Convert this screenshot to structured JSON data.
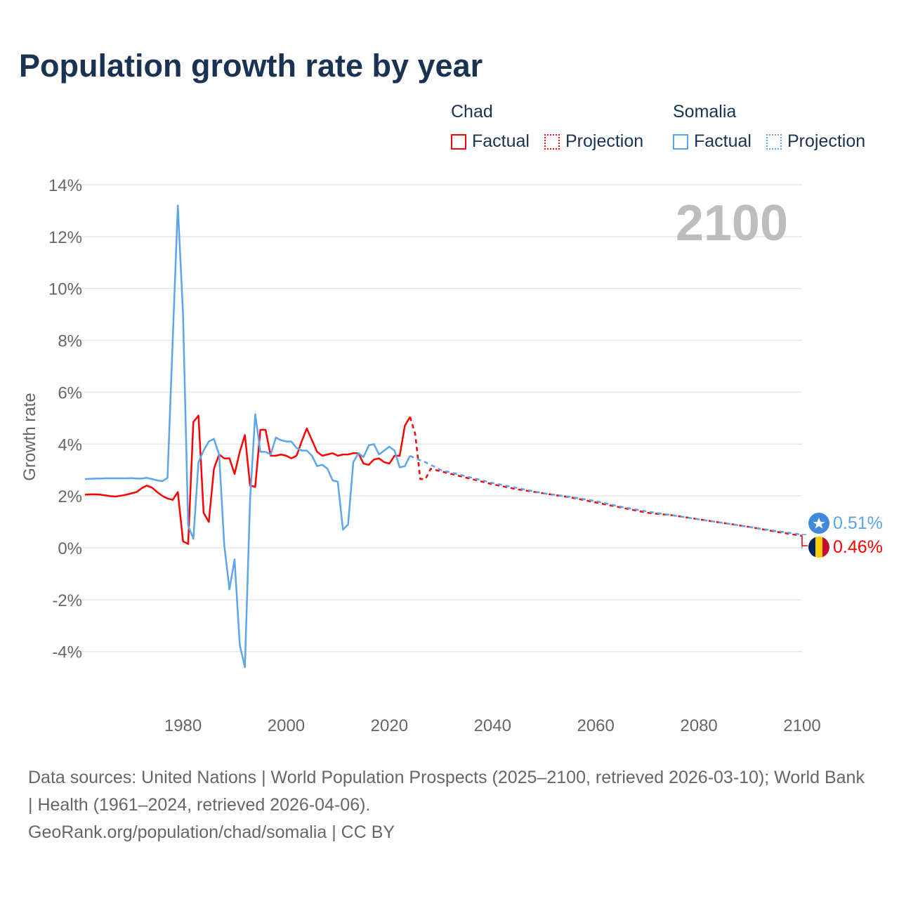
{
  "title": "Population growth rate by year",
  "legend": [
    {
      "name": "Chad",
      "factual": "Factual",
      "projection": "Projection",
      "color": "#ff0000"
    },
    {
      "name": "Somalia",
      "factual": "Factual",
      "projection": "Projection",
      "color": "#5aa5ec"
    }
  ],
  "chart_data": {
    "type": "line",
    "title": "Population growth rate by year",
    "ylabel": "Growth rate",
    "xlabel": "",
    "xlim": [
      1961,
      2100
    ],
    "ylim": [
      -4,
      14
    ],
    "yticks": [
      -4,
      -2,
      0,
      2,
      4,
      6,
      8,
      10,
      12,
      14
    ],
    "ytick_labels": [
      "-4%",
      "-2%",
      "0%",
      "2%",
      "4%",
      "6%",
      "8%",
      "10%",
      "12%",
      "14%"
    ],
    "xticks": [
      1980,
      2000,
      2020,
      2040,
      2060,
      2080,
      2100
    ],
    "xtick_labels": [
      "1980",
      "2000",
      "2020",
      "2040",
      "2060",
      "2080",
      "2100"
    ],
    "year_watermark": "2100",
    "grid": true,
    "series": [
      {
        "name": "Chad",
        "kind": "Factual",
        "color": "#ff0000",
        "dash": false,
        "x": [
          1961,
          1962,
          1963,
          1964,
          1965,
          1966,
          1967,
          1968,
          1969,
          1970,
          1971,
          1972,
          1973,
          1974,
          1975,
          1976,
          1977,
          1978,
          1979,
          1980,
          1981,
          1982,
          1983,
          1984,
          1985,
          1986,
          1987,
          1988,
          1989,
          1990,
          1991,
          1992,
          1993,
          1994,
          1995,
          1996,
          1997,
          1998,
          1999,
          2000,
          2001,
          2002,
          2003,
          2004,
          2005,
          2006,
          2007,
          2008,
          2009,
          2010,
          2011,
          2012,
          2013,
          2014,
          2015,
          2016,
          2017,
          2018,
          2019,
          2020,
          2021,
          2022,
          2023,
          2024
        ],
        "y": [
          2.05,
          2.06,
          2.06,
          2.05,
          2.02,
          1.99,
          1.98,
          2.01,
          2.05,
          2.1,
          2.15,
          2.3,
          2.4,
          2.32,
          2.15,
          2.0,
          1.9,
          1.85,
          2.15,
          0.25,
          0.15,
          4.85,
          5.1,
          1.35,
          1.0,
          3.05,
          3.6,
          3.45,
          3.45,
          2.85,
          3.7,
          4.35,
          2.4,
          2.35,
          4.55,
          4.55,
          3.55,
          3.55,
          3.6,
          3.55,
          3.45,
          3.55,
          4.1,
          4.6,
          4.15,
          3.7,
          3.55,
          3.6,
          3.65,
          3.55,
          3.6,
          3.6,
          3.65,
          3.65,
          3.25,
          3.2,
          3.4,
          3.45,
          3.3,
          3.25,
          3.55,
          3.55,
          4.7,
          5.05
        ]
      },
      {
        "name": "Chad",
        "kind": "Projection",
        "color": "#ff0000",
        "dash": true,
        "x": [
          2024,
          2025,
          2026,
          2027,
          2028,
          2030,
          2035,
          2040,
          2045,
          2050,
          2055,
          2060,
          2065,
          2070,
          2075,
          2080,
          2085,
          2090,
          2095,
          2100
        ],
        "y": [
          5.05,
          4.4,
          2.65,
          2.65,
          3.05,
          2.95,
          2.7,
          2.45,
          2.25,
          2.1,
          1.95,
          1.75,
          1.55,
          1.35,
          1.25,
          1.1,
          0.95,
          0.8,
          0.62,
          0.46
        ]
      },
      {
        "name": "Somalia",
        "kind": "Factual",
        "color": "#5aa5ec",
        "dash": false,
        "x": [
          1961,
          1962,
          1963,
          1964,
          1965,
          1966,
          1967,
          1968,
          1969,
          1970,
          1971,
          1972,
          1973,
          1974,
          1975,
          1976,
          1977,
          1978,
          1979,
          1980,
          1981,
          1982,
          1983,
          1984,
          1985,
          1986,
          1987,
          1988,
          1989,
          1990,
          1991,
          1992,
          1993,
          1994,
          1995,
          1996,
          1997,
          1998,
          1999,
          2000,
          2001,
          2002,
          2003,
          2004,
          2005,
          2006,
          2007,
          2008,
          2009,
          2010,
          2011,
          2012,
          2013,
          2014,
          2015,
          2016,
          2017,
          2018,
          2019,
          2020,
          2021,
          2022,
          2023,
          2024
        ],
        "y": [
          2.65,
          2.66,
          2.67,
          2.67,
          2.68,
          2.68,
          2.68,
          2.68,
          2.68,
          2.69,
          2.67,
          2.67,
          2.7,
          2.65,
          2.6,
          2.57,
          2.7,
          8.0,
          13.2,
          9.0,
          0.85,
          0.35,
          3.3,
          3.75,
          4.1,
          4.2,
          3.6,
          0.1,
          -1.6,
          -0.45,
          -3.75,
          -4.6,
          1.9,
          5.15,
          3.7,
          3.7,
          3.6,
          4.25,
          4.15,
          4.1,
          4.1,
          3.85,
          3.75,
          3.75,
          3.55,
          3.15,
          3.2,
          3.05,
          2.6,
          2.55,
          0.7,
          0.9,
          3.3,
          3.65,
          3.5,
          3.95,
          4.0,
          3.6,
          3.75,
          3.9,
          3.75,
          3.1,
          3.15,
          3.55
        ]
      },
      {
        "name": "Somalia",
        "kind": "Projection",
        "color": "#5aa5ec",
        "dash": true,
        "x": [
          2024,
          2025,
          2027,
          2030,
          2035,
          2040,
          2045,
          2050,
          2055,
          2060,
          2065,
          2070,
          2075,
          2080,
          2085,
          2090,
          2095,
          2100
        ],
        "y": [
          3.55,
          3.45,
          3.3,
          3.0,
          2.75,
          2.5,
          2.3,
          2.1,
          1.97,
          1.8,
          1.58,
          1.4,
          1.25,
          1.1,
          0.95,
          0.8,
          0.65,
          0.51
        ]
      }
    ],
    "end_labels": [
      {
        "name": "Somalia",
        "value": "0.51%",
        "color": "#5aa5ec"
      },
      {
        "name": "Chad",
        "value": "0.46%",
        "color": "#ff0000"
      }
    ]
  },
  "footer": {
    "sources": "Data sources: United Nations | World Population Prospects (2025–2100, retrieved 2026-03-10); World Bank | Health (1961–2024, retrieved 2026-04-06).",
    "link": "GeoRank.org/population/chad/somalia | CC BY"
  }
}
